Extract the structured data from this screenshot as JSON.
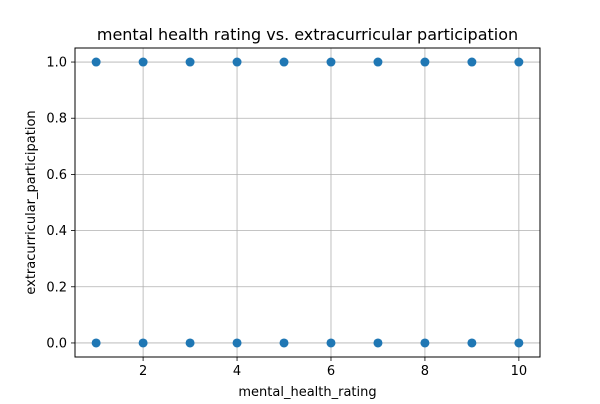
{
  "chart_data": {
    "type": "scatter",
    "title": "mental health rating vs. extracurricular participation",
    "xlabel": "mental_health_rating",
    "ylabel": "extracurricular_participation",
    "xlim": [
      0.55,
      10.45
    ],
    "ylim": [
      -0.05,
      1.05
    ],
    "xticks": [
      2,
      4,
      6,
      8,
      10
    ],
    "xtick_labels": [
      "2",
      "4",
      "6",
      "8",
      "10"
    ],
    "yticks": [
      0.0,
      0.2,
      0.4,
      0.6,
      0.8,
      1.0
    ],
    "ytick_labels": [
      "0.0",
      "0.2",
      "0.4",
      "0.6",
      "0.8",
      "1.0"
    ],
    "grid": true,
    "marker_color": "#1f77b4",
    "series": [
      {
        "x": [
          1,
          2,
          3,
          4,
          5,
          6,
          7,
          8,
          9,
          10,
          1,
          2,
          3,
          4,
          5,
          6,
          7,
          8,
          9,
          10
        ],
        "y": [
          1,
          1,
          1,
          1,
          1,
          1,
          1,
          1,
          1,
          1,
          0,
          0,
          0,
          0,
          0,
          0,
          0,
          0,
          0,
          0
        ]
      }
    ]
  }
}
